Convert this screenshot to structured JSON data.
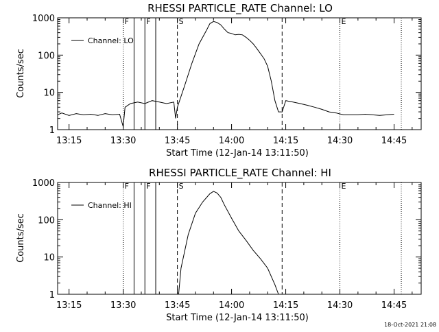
{
  "window": {
    "timestamp": "18-Oct-2021 21:08"
  },
  "chart_data": [
    {
      "type": "line",
      "title": "RHESSI PARTICLE_RATE Channel: LO",
      "xlabel": "Start Time (12-Jan-14 13:11:50)",
      "ylabel": "Counts/sec",
      "y_scale": "log",
      "ylim": [
        1,
        1000
      ],
      "y_ticks": [
        1,
        10,
        100,
        1000
      ],
      "y_tick_labels": [
        "1",
        "10",
        "100",
        "1000"
      ],
      "xlim": [
        "13:11:50",
        "14:52:30"
      ],
      "x_ticks": [
        "13:15",
        "13:30",
        "13:45",
        "14:00",
        "14:15",
        "14:30",
        "14:45"
      ],
      "grid": false,
      "legend": {
        "position": "top-left",
        "entries": [
          "Channel: LO"
        ]
      },
      "markers": [
        {
          "time": "13:30",
          "style": "dotted",
          "label": "F"
        },
        {
          "time": "13:33",
          "style": "solid",
          "label": ""
        },
        {
          "time": "13:36",
          "style": "solid",
          "label": "F"
        },
        {
          "time": "13:39",
          "style": "solid",
          "label": ""
        },
        {
          "time": "13:45",
          "style": "dashed",
          "label": "S"
        },
        {
          "time": "14:14",
          "style": "dashed",
          "label": ""
        },
        {
          "time": "14:30",
          "style": "dotted",
          "label": "E"
        },
        {
          "time": "14:47",
          "style": "dotted",
          "label": ""
        }
      ],
      "series": [
        {
          "name": "Channel: LO",
          "x": [
            "13:11:50",
            "13:13",
            "13:15",
            "13:17",
            "13:19",
            "13:21",
            "13:23",
            "13:25",
            "13:27",
            "13:29",
            "13:30",
            "13:30:30",
            "13:32",
            "13:34",
            "13:36",
            "13:38",
            "13:40",
            "13:42",
            "13:44",
            "13:44:30",
            "13:45",
            "13:47",
            "13:49",
            "13:51",
            "13:53",
            "13:54",
            "13:55",
            "13:56",
            "13:57",
            "13:58",
            "13:59",
            "14:00",
            "14:01",
            "14:02",
            "14:03",
            "14:04",
            "14:05",
            "14:06",
            "14:07",
            "14:08",
            "14:09",
            "14:10",
            "14:11",
            "14:12",
            "14:13",
            "14:14",
            "14:15",
            "14:17",
            "14:19",
            "14:21",
            "14:23",
            "14:25",
            "14:27",
            "14:29",
            "14:31",
            "14:33",
            "14:35",
            "14:37",
            "14:39",
            "14:41",
            "14:43",
            "14:45"
          ],
          "y": [
            2.5,
            2.8,
            2.4,
            2.7,
            2.5,
            2.6,
            2.4,
            2.7,
            2.5,
            2.6,
            1.2,
            4.0,
            5.0,
            5.5,
            5.0,
            6.0,
            5.5,
            5.0,
            5.5,
            2.0,
            4.0,
            15,
            60,
            200,
            450,
            700,
            800,
            750,
            650,
            500,
            400,
            380,
            350,
            360,
            350,
            300,
            250,
            200,
            150,
            110,
            80,
            50,
            20,
            6,
            3,
            3,
            6,
            5.5,
            5.0,
            4.5,
            4.0,
            3.5,
            3.0,
            2.8,
            2.5,
            2.5,
            2.5,
            2.6,
            2.5,
            2.4,
            2.5,
            2.6
          ]
        }
      ]
    },
    {
      "type": "line",
      "title": "RHESSI PARTICLE_RATE Channel: HI",
      "xlabel": "Start Time (12-Jan-14 13:11:50)",
      "ylabel": "Counts/sec",
      "y_scale": "log",
      "ylim": [
        1,
        1000
      ],
      "y_ticks": [
        1,
        10,
        100,
        1000
      ],
      "y_tick_labels": [
        "1",
        "10",
        "100",
        "1000"
      ],
      "xlim": [
        "13:11:50",
        "14:52:30"
      ],
      "x_ticks": [
        "13:15",
        "13:30",
        "13:45",
        "14:00",
        "14:15",
        "14:30",
        "14:45"
      ],
      "grid": false,
      "legend": {
        "position": "top-left",
        "entries": [
          "Channel: HI"
        ]
      },
      "markers": [
        {
          "time": "13:30",
          "style": "dotted",
          "label": "F"
        },
        {
          "time": "13:33",
          "style": "solid",
          "label": ""
        },
        {
          "time": "13:36",
          "style": "solid",
          "label": "F"
        },
        {
          "time": "13:39",
          "style": "solid",
          "label": ""
        },
        {
          "time": "13:45",
          "style": "dashed",
          "label": "S"
        },
        {
          "time": "14:14",
          "style": "dashed",
          "label": ""
        },
        {
          "time": "14:30",
          "style": "dotted",
          "label": "E"
        },
        {
          "time": "14:47",
          "style": "dotted",
          "label": ""
        }
      ],
      "series": [
        {
          "name": "Channel: HI",
          "x": [
            "13:45:20",
            "13:46",
            "13:48",
            "13:50",
            "13:52",
            "13:54",
            "13:55",
            "13:56",
            "13:57",
            "13:58",
            "14:00",
            "14:02",
            "14:04",
            "14:06",
            "14:08",
            "14:10",
            "14:11",
            "14:12",
            "14:13"
          ],
          "y": [
            1.0,
            5,
            40,
            150,
            300,
            500,
            580,
            520,
            400,
            250,
            110,
            50,
            28,
            15,
            9,
            5,
            3,
            1.8,
            1.0
          ]
        }
      ]
    }
  ]
}
